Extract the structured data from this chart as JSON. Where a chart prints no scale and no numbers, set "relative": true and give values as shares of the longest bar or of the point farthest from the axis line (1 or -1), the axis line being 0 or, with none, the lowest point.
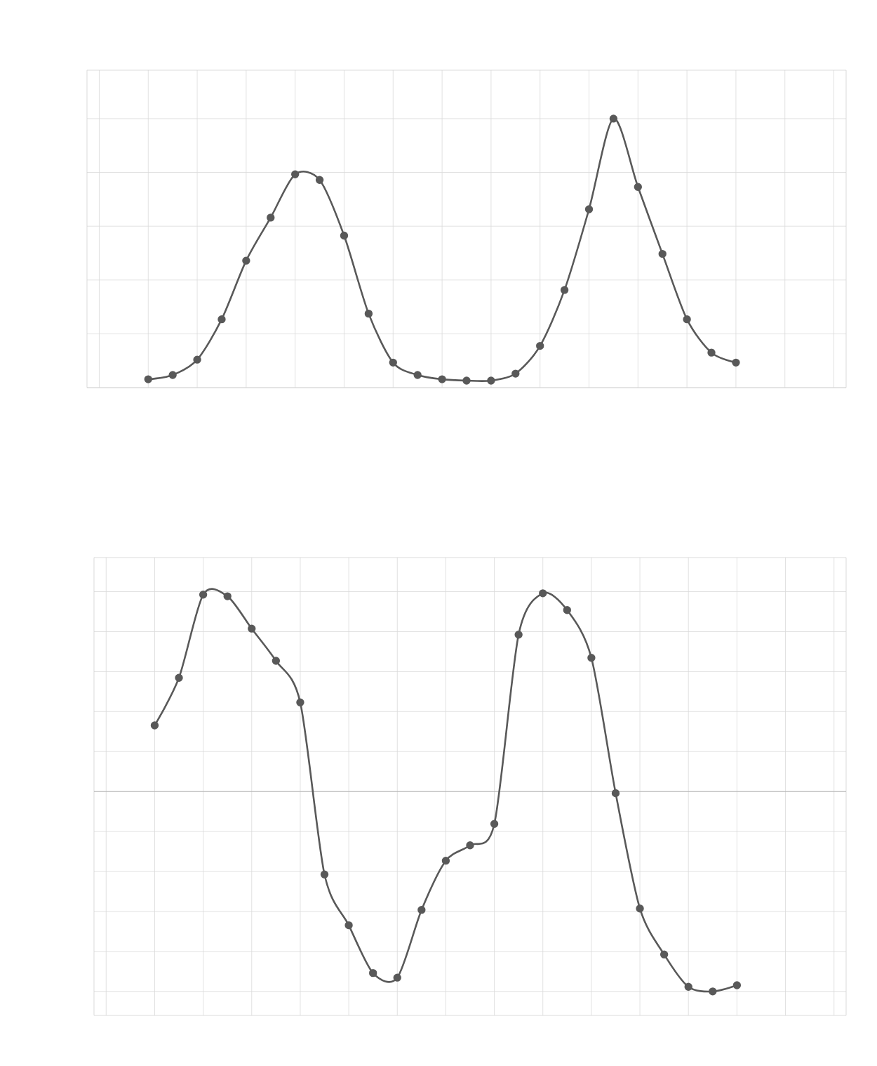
{
  "chart_data": [
    {
      "type": "line",
      "relative": true,
      "grid": true,
      "marker": "circle",
      "categories": [
        null,
        null,
        null,
        null,
        null,
        null,
        null,
        null,
        null,
        null,
        null,
        null,
        null,
        null,
        null,
        null,
        null,
        null,
        null,
        null,
        null,
        null,
        null,
        null,
        null
      ],
      "series": [
        {
          "color": "#595959",
          "values": [
            0.031,
            0.047,
            0.104,
            0.254,
            0.472,
            0.632,
            0.793,
            0.772,
            0.565,
            0.275,
            0.093,
            0.047,
            0.031,
            0.026,
            0.026,
            0.052,
            0.155,
            0.363,
            0.663,
            1,
            0.746,
            0.497,
            0.254,
            0.13,
            0.093
          ]
        }
      ]
    },
    {
      "type": "line",
      "relative": true,
      "grid": true,
      "marker": "circle",
      "categories": [
        null,
        null,
        null,
        null,
        null,
        null,
        null,
        null,
        null,
        null,
        null,
        null,
        null,
        null,
        null,
        null,
        null,
        null,
        null,
        null,
        null,
        null,
        null,
        null,
        null
      ],
      "series": [
        {
          "color": "#595959",
          "values": [
            0.331,
            0.569,
            0.985,
            0.977,
            0.815,
            0.654,
            0.446,
            -0.415,
            -0.669,
            -0.908,
            -0.931,
            -0.592,
            -0.346,
            -0.269,
            -0.162,
            0.785,
            0.992,
            0.908,
            0.669,
            -0.008,
            -0.585,
            -0.815,
            -0.977,
            -1,
            -0.969
          ]
        }
      ]
    }
  ]
}
